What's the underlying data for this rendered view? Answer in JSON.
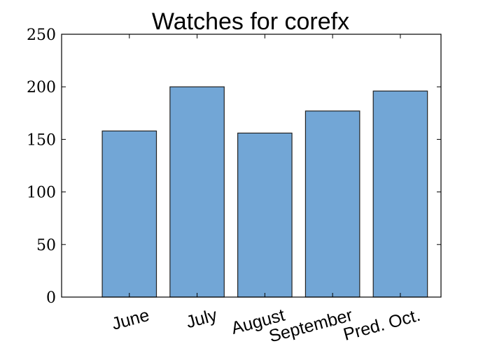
{
  "chart_data": {
    "type": "bar",
    "title": "Watches for corefx",
    "xlabel": "",
    "ylabel": "",
    "categories": [
      "June",
      "July",
      "August",
      "September",
      "Pred. Oct."
    ],
    "values": [
      158,
      200,
      156,
      177,
      196
    ],
    "ylim": [
      0,
      250
    ],
    "yticks": [
      0,
      50,
      100,
      150,
      200,
      250
    ],
    "ytick_labels": [
      "0",
      "50",
      "100",
      "150",
      "200",
      "250"
    ],
    "bar_color": "#72a6d6",
    "bar_edge_color": "#222222",
    "axis_color": "#000000",
    "grid": false,
    "legend": "none"
  }
}
